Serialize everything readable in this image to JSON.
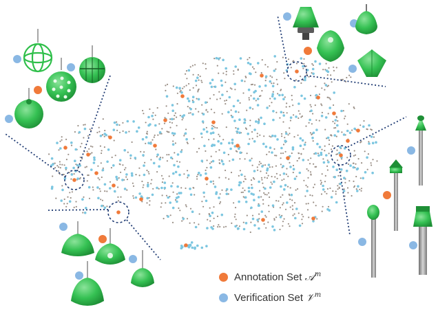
{
  "legend": {
    "annotation_label": "Annotation Set ",
    "annotation_symbol": "𝒜",
    "annotation_sup": "m",
    "verification_label": "Verification Set ",
    "verification_symbol": "𝒱",
    "verification_sup": "m"
  },
  "colors": {
    "annotation": "#f07a3a",
    "verification": "#8ab8e4",
    "background_points": "#9a8f86",
    "cluster_blue": "#7cc6e0",
    "connector": "#1f3b73",
    "lamp_green": "#2fbf4a",
    "pole_gray": "#8a8a8a"
  },
  "icons": [
    "sphere-lamp-icon",
    "pendant-lamp-icon",
    "bollard-lamp-icon",
    "pole-lamp-icon"
  ]
}
